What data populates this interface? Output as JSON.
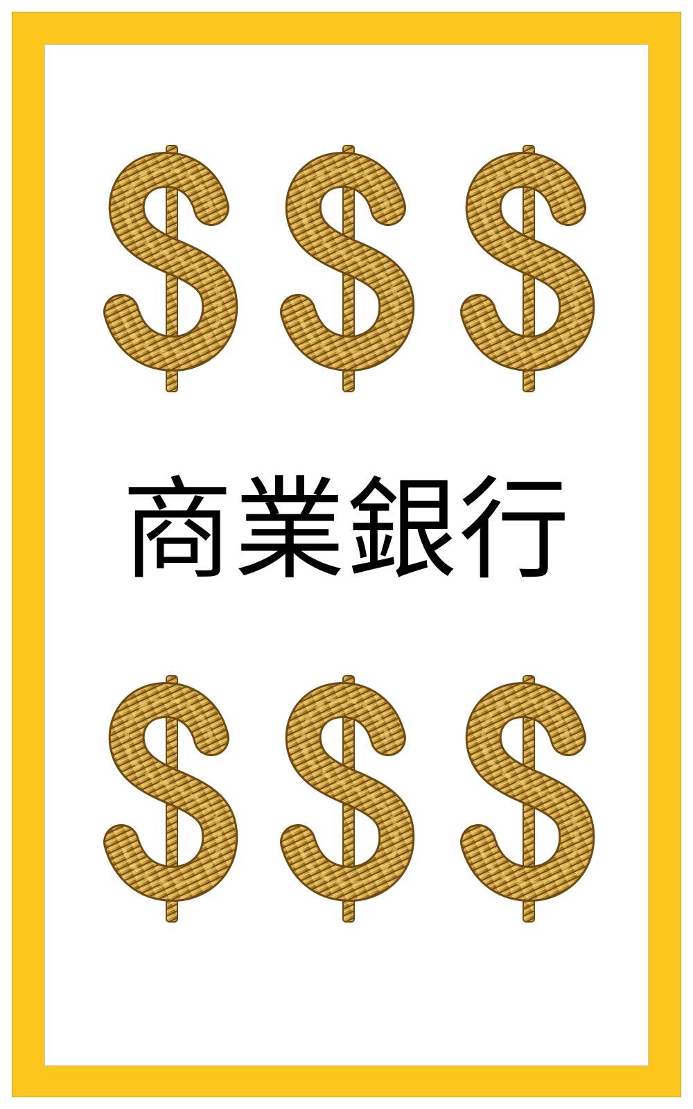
{
  "title": "商業銀行",
  "symbols": {
    "icon": "gold-coin-dollar-sign-icon",
    "glyph": "$",
    "count_top_row": 3,
    "count_bottom_row": 3
  },
  "colors": {
    "frame": "#fcc61d",
    "panel": "#ffffff",
    "gold_light": "#f2d47a",
    "gold_mid": "#c89a35",
    "gold_dark": "#6e4a12",
    "text": "#000000"
  }
}
